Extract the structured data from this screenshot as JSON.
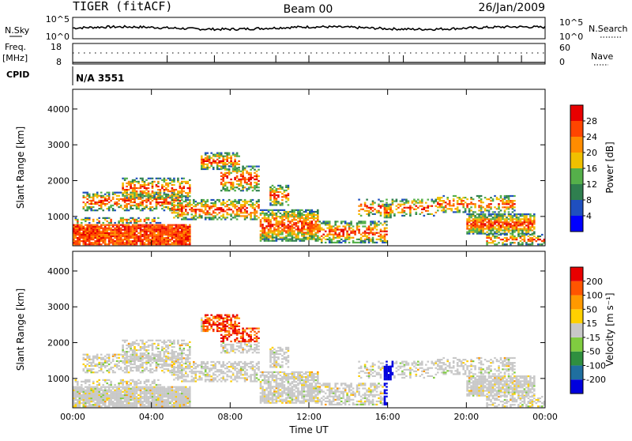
{
  "header": {
    "station": "TIGER (fitACF)",
    "beam": "Beam 00",
    "date": "26/Jan/2009"
  },
  "status_panels": {
    "nsky_label": "N.Sky",
    "nsearch_label": "N.Search",
    "noise_ticks": [
      "10^5",
      "10^0"
    ],
    "freq_label_line1": "Freq.",
    "freq_label_line2": "[MHz]",
    "freq_ticks": [
      "18",
      "8"
    ],
    "nave_label": "Nave",
    "nave_ticks": [
      "60",
      "0"
    ],
    "cpid_label": "CPID",
    "cpid_value": "N/A 3551"
  },
  "chart_data": [
    {
      "type": "heatmap",
      "name": "power",
      "ylabel": "Slant Range [km]",
      "ylim": [
        180,
        4550
      ],
      "yticks": [
        "1000",
        "2000",
        "3000",
        "4000"
      ],
      "xticks": [
        "00:00",
        "04:00",
        "08:00",
        "12:00",
        "16:00",
        "20:00",
        "00:00"
      ],
      "colorbar_label": "Power [dB]",
      "colorbar_ticks": [
        "4",
        "8",
        "12",
        "16",
        "20",
        "24",
        "28"
      ],
      "colorbar_colors": [
        "#0000ff",
        "#1f4fbf",
        "#2f7f4f",
        "#55b04a",
        "#f0c000",
        "#ff8c00",
        "#ff4500",
        "#e80000"
      ]
    },
    {
      "type": "heatmap",
      "name": "velocity",
      "ylabel": "Slant Range [km]",
      "xlabel": "Time UT",
      "ylim": [
        180,
        4550
      ],
      "yticks": [
        "1000",
        "2000",
        "3000",
        "4000"
      ],
      "xticks": [
        "00:00",
        "04:00",
        "08:00",
        "12:00",
        "16:00",
        "20:00",
        "00:00"
      ],
      "colorbar_label": "Velocity [m s⁻¹]",
      "colorbar_ticks": [
        "200",
        "100",
        "50",
        "15",
        "-15",
        "-50",
        "-100",
        "-200"
      ],
      "colorbar_colors": [
        "#0000dd",
        "#1f6f9f",
        "#2f8f3f",
        "#80cc40",
        "#c8c8c8",
        "#ffd000",
        "#ff9900",
        "#ff5500",
        "#e80000"
      ]
    }
  ]
}
